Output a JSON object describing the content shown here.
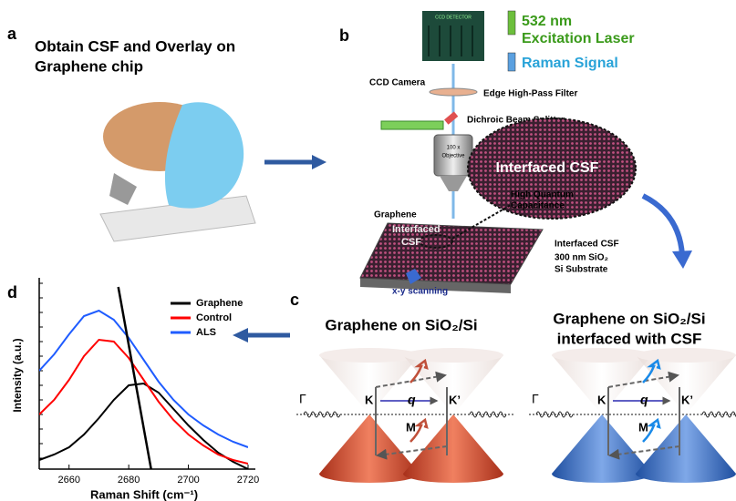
{
  "panel_a": {
    "label": "a",
    "title_lines": [
      "Obtain CSF and Overlay on",
      "Graphene chip"
    ]
  },
  "panel_b": {
    "label": "b",
    "detector": "CCD DETECTOR",
    "laser_wavelength": "532 nm",
    "laser": "Excitation Laser",
    "raman": "Raman Signal",
    "camera": "CCD Camera",
    "filter": "Edge High-Pass Filter",
    "splitter": "Dichroic Beam Splitter",
    "objective_lines": [
      "100 x",
      "Objective"
    ],
    "zoom_label": "Interfaced CSF",
    "capacitance_lines": [
      "High Quantum",
      "Capacitance"
    ],
    "graphene": "Graphene",
    "chip_label_lines": [
      "Interfaced",
      "CSF"
    ],
    "layers": [
      "Interfaced CSF",
      "300 nm SiO₂",
      "Si Substrate"
    ],
    "scanning": "x-y scanning"
  },
  "panel_c": {
    "label": "c",
    "left_title": "Graphene on SiO₂/Si",
    "right_title_lines": [
      "Graphene  on  SiO₂/Si",
      "interfaced with CSF"
    ],
    "symbols": {
      "gamma": "Γ",
      "k": "K",
      "k_prime": "K’",
      "q": "q",
      "m": "M"
    }
  },
  "panel_d_label": "d",
  "chart_data": {
    "type": "line",
    "x_label": "Raman Shift (cm⁻¹)",
    "y_label": "Intensity (a.u.)",
    "x": [
      2650,
      2655,
      2660,
      2665,
      2670,
      2675,
      2680,
      2685,
      2690,
      2695,
      2700,
      2705,
      2710,
      2715,
      2720
    ],
    "series": [
      {
        "name": "Graphene",
        "color": "#000000",
        "values": [
          5,
          8,
          12,
          19,
          28,
          38,
          46,
          47,
          42,
          33,
          24,
          16,
          9,
          4,
          0
        ]
      },
      {
        "name": "Control",
        "color": "#ff0000",
        "values": [
          30,
          38,
          49,
          62,
          71,
          70,
          61,
          49,
          37,
          27,
          19,
          13,
          8,
          5,
          3
        ]
      },
      {
        "name": "ALS",
        "color": "#1f5cff",
        "values": [
          54,
          63,
          74,
          84,
          87,
          82,
          72,
          60,
          48,
          38,
          30,
          24,
          19,
          15,
          12
        ]
      }
    ],
    "fit_line": {
      "color": "#000000",
      "x": [
        2676.5,
        2687.5
      ],
      "values": [
        100,
        0
      ]
    },
    "xlim": [
      2650,
      2720
    ],
    "xticks": [
      2660,
      2680,
      2700,
      2720
    ],
    "ylim": [
      0,
      100
    ],
    "legend": "upper right"
  }
}
